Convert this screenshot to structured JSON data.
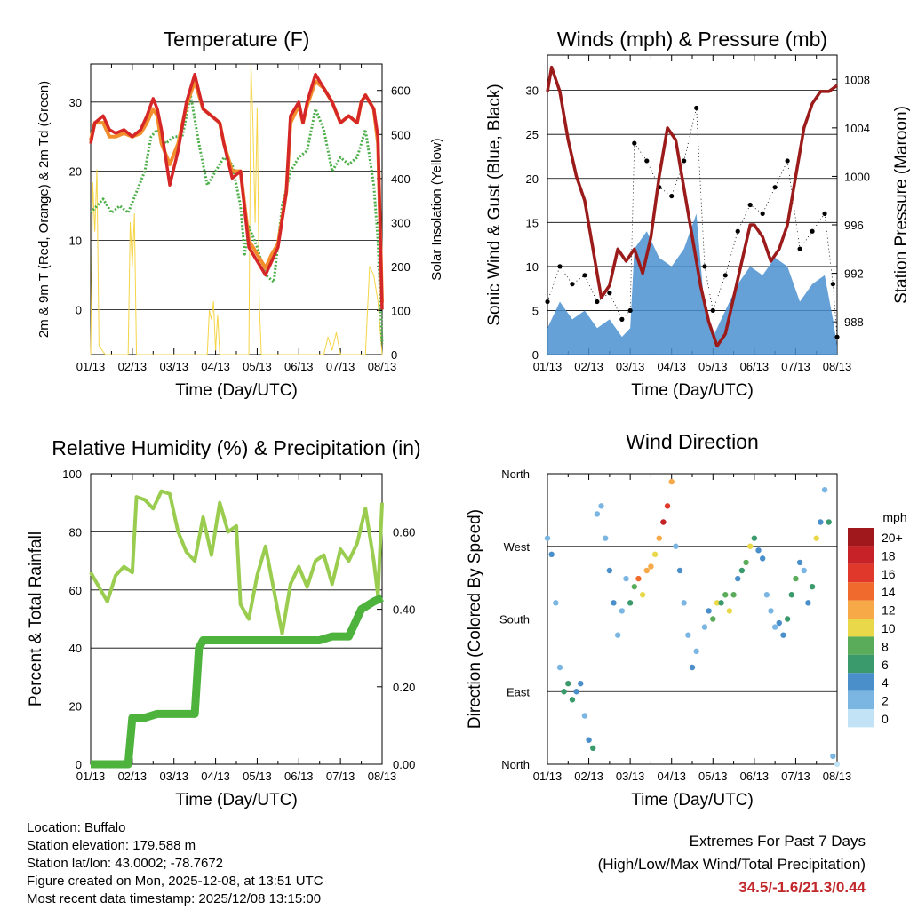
{
  "chart_data": [
    {
      "type": "line",
      "title": "Temperature (F)",
      "xlabel": "Time (Day/UTC)",
      "ylabel": "2m & 9m T (Red, Orange) & 2m Td (Green)",
      "y2label": "Solar Insolation (Yellow)",
      "xticks": [
        "01/13",
        "02/13",
        "03/13",
        "04/13",
        "05/13",
        "06/13",
        "07/13",
        "08/13"
      ],
      "ylim": [
        -6.5,
        35.5
      ],
      "yticks": [
        0,
        10,
        20,
        30
      ],
      "y2lim": [
        0,
        660
      ],
      "y2ticks": [
        0,
        100,
        200,
        300,
        400,
        500,
        600
      ],
      "colors": {
        "t2m": "#d62728",
        "t9m": "#f28e2b",
        "td": "#4daf4a",
        "solar": "#f5d547"
      },
      "series": [
        {
          "name": "2m T",
          "x": [
            0,
            0.1,
            0.3,
            0.45,
            0.6,
            0.8,
            1,
            1.2,
            1.35,
            1.5,
            1.6,
            1.7,
            1.9,
            2.1,
            2.3,
            2.5,
            2.7,
            2.9,
            3.1,
            3.2,
            3.4,
            3.6,
            3.8,
            4.0,
            4.2,
            4.35,
            4.5,
            4.7,
            4.8,
            5.0,
            5.1,
            5.2,
            5.4,
            5.6,
            5.8,
            6.0,
            6.2,
            6.4,
            6.5,
            6.6,
            6.8,
            6.9,
            7.0
          ],
          "values": [
            24,
            27,
            28,
            26,
            25.5,
            26,
            25,
            26,
            28,
            30.5,
            29,
            26,
            18,
            23,
            30,
            34,
            29,
            28,
            27,
            24,
            19,
            20,
            9,
            7,
            5,
            7,
            9,
            17,
            28,
            30,
            27,
            30,
            34,
            32,
            30,
            27,
            28,
            27,
            30,
            31,
            29,
            25,
            0
          ]
        },
        {
          "name": "9m T",
          "x": [
            0,
            0.1,
            0.3,
            0.45,
            0.6,
            0.8,
            1,
            1.2,
            1.35,
            1.5,
            1.6,
            1.7,
            1.9,
            2.1,
            2.3,
            2.5,
            2.7,
            2.9,
            3.1,
            3.2,
            3.4,
            3.6,
            3.8,
            4.0,
            4.2,
            4.35,
            4.5,
            4.7,
            4.8,
            5.0,
            5.1,
            5.2,
            5.4,
            5.6,
            5.8,
            6.0,
            6.2,
            6.4,
            6.5,
            6.6,
            6.8,
            6.9,
            7.0
          ],
          "values": [
            24.5,
            27,
            27,
            25,
            25,
            25.5,
            25,
            25.5,
            27,
            29,
            28,
            24,
            21,
            24,
            29.5,
            33,
            29,
            28,
            27,
            24,
            20,
            20,
            10,
            8,
            6,
            8,
            9.5,
            17,
            27,
            29.5,
            27,
            29.5,
            33,
            32,
            30,
            27,
            28,
            27,
            30,
            31,
            29,
            24,
            1
          ]
        },
        {
          "name": "2m Td",
          "x": [
            0,
            0.15,
            0.3,
            0.5,
            0.7,
            0.9,
            1.1,
            1.3,
            1.45,
            1.6,
            1.8,
            2.0,
            2.2,
            2.4,
            2.6,
            2.8,
            3.0,
            3.2,
            3.4,
            3.6,
            3.7,
            3.8,
            4.0,
            4.2,
            4.4,
            4.6,
            4.8,
            5.0,
            5.2,
            5.4,
            5.6,
            5.8,
            6.0,
            6.2,
            6.4,
            6.6,
            6.8,
            6.9,
            7.0
          ],
          "values": [
            14,
            15,
            16,
            14,
            15,
            14,
            17,
            20,
            25,
            26,
            24,
            25,
            25,
            31,
            24,
            18,
            20,
            22,
            21,
            15,
            8,
            12,
            9,
            5,
            4,
            15,
            20,
            22,
            23,
            29,
            26,
            20,
            22,
            21,
            22,
            26,
            18,
            10,
            -5
          ]
        },
        {
          "name": "Solar",
          "x": [
            0,
            0.05,
            0.1,
            0.15,
            0.2,
            0.35,
            0.9,
            0.95,
            1.0,
            1.05,
            1.1,
            2.8,
            2.85,
            2.9,
            2.95,
            3.0,
            3.05,
            3.1,
            3.8,
            3.85,
            3.9,
            3.95,
            4.0,
            4.05,
            4.1,
            5.6,
            5.7,
            5.8,
            5.9,
            6.0,
            6.6,
            6.7,
            6.8,
            6.9,
            7.0
          ],
          "values": [
            0,
            390,
            280,
            420,
            20,
            0,
            0,
            300,
            200,
            320,
            0,
            0,
            100,
            80,
            120,
            10,
            90,
            0,
            0,
            660,
            520,
            300,
            560,
            120,
            0,
            0,
            40,
            10,
            50,
            0,
            0,
            200,
            180,
            120,
            0
          ]
        }
      ]
    },
    {
      "type": "line",
      "title": "Winds (mph) & Pressure (mb)",
      "xlabel": "Time (Day/UTC)",
      "ylabel": "Sonic Wind & Gust (Blue, Black)",
      "y2label": "Station Pressure (Maroon)",
      "xticks": [
        "01/13",
        "02/13",
        "03/13",
        "04/13",
        "05/13",
        "06/13",
        "07/13",
        "08/13"
      ],
      "ylim": [
        0,
        34
      ],
      "yticks": [
        0,
        5,
        10,
        15,
        20,
        25,
        30
      ],
      "y2lim": [
        985.3,
        1010
      ],
      "y2ticks": [
        988,
        992,
        996,
        1000,
        1004,
        1008
      ],
      "colors": {
        "wind": "#4a90d0",
        "gust": "#000000",
        "pressure": "#9b1b1b"
      },
      "series": [
        {
          "name": "Sonic Wind",
          "x": [
            0,
            0.3,
            0.6,
            0.9,
            1.2,
            1.5,
            1.8,
            2.0,
            2.1,
            2.4,
            2.7,
            3.0,
            3.3,
            3.6,
            3.8,
            4.0,
            4.3,
            4.6,
            4.9,
            5.2,
            5.5,
            5.8,
            6.1,
            6.4,
            6.7,
            6.9,
            7.0
          ],
          "values": [
            3,
            6,
            4,
            5,
            3,
            4,
            2,
            3,
            12,
            14,
            11,
            10,
            12,
            16,
            5,
            2,
            5,
            8,
            10,
            9,
            11,
            10,
            6,
            8,
            9,
            4,
            1
          ]
        },
        {
          "name": "Gust",
          "x": [
            0,
            0.3,
            0.6,
            0.9,
            1.2,
            1.5,
            1.8,
            2.0,
            2.1,
            2.4,
            2.7,
            3.0,
            3.3,
            3.6,
            3.8,
            4.0,
            4.3,
            4.6,
            4.9,
            5.2,
            5.5,
            5.8,
            6.1,
            6.4,
            6.7,
            6.9,
            7.0
          ],
          "values": [
            6,
            10,
            8,
            9,
            6,
            7,
            4,
            5,
            24,
            22,
            19,
            18,
            22,
            28,
            10,
            5,
            9,
            14,
            17,
            16,
            19,
            22,
            12,
            14,
            16,
            8,
            2
          ]
        },
        {
          "name": "Station Pressure",
          "x": [
            0,
            0.1,
            0.3,
            0.5,
            0.7,
            0.9,
            1.1,
            1.3,
            1.5,
            1.7,
            1.9,
            2.1,
            2.3,
            2.5,
            2.7,
            2.9,
            3.1,
            3.3,
            3.5,
            3.7,
            3.9,
            4.1,
            4.3,
            4.5,
            4.7,
            4.9,
            5.0,
            5.2,
            5.4,
            5.6,
            5.8,
            6.0,
            6.2,
            6.4,
            6.6,
            6.8,
            7.0
          ],
          "values": [
            1007,
            1009,
            1007,
            1003,
            1000,
            998,
            994,
            990,
            991,
            994,
            993,
            994,
            992,
            995,
            1000,
            1004,
            1003,
            999,
            995,
            991,
            988,
            986,
            987,
            990,
            993,
            996,
            996,
            995,
            993,
            994,
            996,
            1000,
            1004,
            1006,
            1007,
            1007,
            1007.5
          ]
        }
      ]
    },
    {
      "type": "line",
      "title": "Relative Humidity (%) & Precipitation (in)",
      "xlabel": "Time (Day/UTC)",
      "ylabel": "Percent & Total Rainfall",
      "xticks": [
        "01/13",
        "02/13",
        "03/13",
        "04/13",
        "05/13",
        "06/13",
        "07/13",
        "08/13"
      ],
      "ylim": [
        0,
        100
      ],
      "yticks": [
        0,
        20,
        40,
        60,
        80,
        100
      ],
      "y2lim": [
        0,
        0.75
      ],
      "y2ticks": [
        "0.00",
        "0.20",
        "0.40",
        "0.60"
      ],
      "colors": {
        "rh": "#9acd4f",
        "precip": "#4db33d"
      },
      "series": [
        {
          "name": "Relative Humidity",
          "x": [
            0,
            0.2,
            0.4,
            0.6,
            0.8,
            1.0,
            1.1,
            1.3,
            1.5,
            1.7,
            1.9,
            2.1,
            2.3,
            2.5,
            2.7,
            2.9,
            3.1,
            3.3,
            3.5,
            3.6,
            3.8,
            4.0,
            4.2,
            4.4,
            4.6,
            4.8,
            5.0,
            5.2,
            5.4,
            5.6,
            5.8,
            6.0,
            6.2,
            6.4,
            6.6,
            6.8,
            6.9,
            7.0
          ],
          "values": [
            66,
            61,
            56,
            65,
            68,
            66,
            92,
            91,
            88,
            94,
            93,
            80,
            73,
            70,
            85,
            72,
            90,
            80,
            82,
            55,
            50,
            65,
            75,
            60,
            45,
            62,
            68,
            61,
            70,
            72,
            62,
            74,
            70,
            76,
            88,
            70,
            58,
            90
          ]
        },
        {
          "name": "Total Precipitation",
          "x": [
            0,
            0.5,
            0.9,
            1.0,
            1.3,
            1.6,
            2.0,
            2.5,
            2.6,
            2.7,
            3.5,
            4.0,
            4.5,
            5.0,
            5.5,
            5.8,
            5.9,
            6.2,
            6.5,
            6.8,
            7.0
          ],
          "values": [
            0,
            0,
            0,
            0.12,
            0.12,
            0.13,
            0.13,
            0.13,
            0.3,
            0.32,
            0.32,
            0.32,
            0.32,
            0.32,
            0.32,
            0.33,
            0.33,
            0.33,
            0.4,
            0.42,
            0.43
          ]
        }
      ]
    },
    {
      "type": "scatter",
      "title": "Wind Direction",
      "xlabel": "Time (Day/UTC)",
      "ylabel": "Direction (Colored By Speed)",
      "xticks": [
        "01/13",
        "02/13",
        "03/13",
        "04/13",
        "05/13",
        "06/13",
        "07/13",
        "08/13"
      ],
      "ylim": [
        0,
        360
      ],
      "yticks": [
        "North",
        "East",
        "South",
        "West",
        "North"
      ],
      "colorbar": {
        "title": "mph",
        "labels": [
          "20+",
          "18",
          "16",
          "14",
          "12",
          "10",
          "8",
          "6",
          "4",
          "2",
          "0"
        ],
        "colors": [
          "#a0181c",
          "#c62227",
          "#e0382a",
          "#f06a2e",
          "#f7a847",
          "#e8d84a",
          "#5aab5a",
          "#3b9a6b",
          "#4a8fc9",
          "#7bb6e3",
          "#c2e3f5"
        ]
      },
      "series": [
        {
          "name": "Direction",
          "x": [
            0,
            0.1,
            0.2,
            0.3,
            0.4,
            0.5,
            0.6,
            0.7,
            0.8,
            0.9,
            1.0,
            1.1,
            1.2,
            1.3,
            1.4,
            1.5,
            1.6,
            1.7,
            1.8,
            1.9,
            2.0,
            2.1,
            2.2,
            2.3,
            2.4,
            2.5,
            2.6,
            2.7,
            2.8,
            2.9,
            3.0,
            3.1,
            3.2,
            3.3,
            3.4,
            3.5,
            3.6,
            3.8,
            3.9,
            4.0,
            4.1,
            4.2,
            4.3,
            4.4,
            4.5,
            4.6,
            4.7,
            4.8,
            4.9,
            5.0,
            5.1,
            5.2,
            5.3,
            5.4,
            5.5,
            5.6,
            5.7,
            5.8,
            5.9,
            6.0,
            6.1,
            6.2,
            6.3,
            6.4,
            6.5,
            6.6,
            6.7,
            6.8,
            6.9,
            7.0
          ],
          "values": [
            280,
            260,
            200,
            120,
            90,
            100,
            80,
            90,
            100,
            60,
            30,
            20,
            310,
            320,
            280,
            240,
            200,
            160,
            190,
            230,
            200,
            220,
            230,
            210,
            240,
            245,
            260,
            280,
            300,
            320,
            350,
            270,
            240,
            200,
            160,
            120,
            140,
            170,
            190,
            180,
            200,
            200,
            210,
            190,
            210,
            230,
            240,
            250,
            270,
            280,
            265,
            255,
            210,
            190,
            170,
            175,
            160,
            180,
            210,
            230,
            250,
            240,
            200,
            220,
            280,
            300,
            340,
            300,
            10,
            0
          ],
          "speeds": [
            3,
            5,
            2,
            3,
            6,
            7,
            6,
            5,
            4,
            2,
            5,
            6,
            2,
            3,
            2,
            4,
            5,
            3,
            2,
            3,
            7,
            8,
            14,
            11,
            13,
            12,
            11,
            13,
            18,
            16,
            12,
            3,
            4,
            3,
            2,
            4,
            3,
            3,
            4,
            9,
            10,
            7,
            9,
            11,
            8,
            5,
            6,
            9,
            10,
            7,
            5,
            4,
            3,
            2,
            3,
            4,
            5,
            6,
            7,
            8,
            4,
            2,
            5,
            6,
            10,
            5,
            3,
            6,
            2,
            1
          ]
        }
      ]
    }
  ],
  "footer": {
    "location": "Location: Buffalo",
    "elevation": "Station elevation: 179.588 m",
    "latlon": "Station lat/lon: 43.0002; -78.7672",
    "created": "Figure created on Mon, 2025-12-08, at 13:51 UTC",
    "timestamp": "Most recent data timestamp: 2025/12/08 13:15:00"
  },
  "extremes": {
    "title": "Extremes For Past 7 Days",
    "subtitle": "(High/Low/Max Wind/Total Precipitation)",
    "values": "34.5/-1.6/21.3/0.44"
  }
}
